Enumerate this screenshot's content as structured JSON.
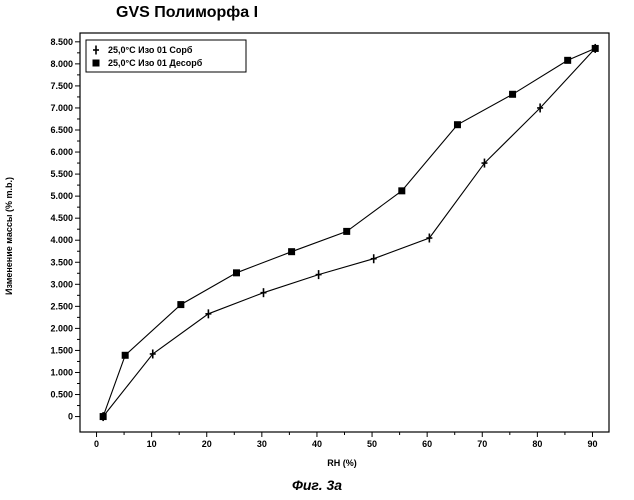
{
  "chart_data": {
    "type": "line",
    "title": "GVS Полиморфа I",
    "xlabel": "RH (%)",
    "ylabel": "Изменение массы (% m.b.)",
    "xlim": [
      -3,
      93
    ],
    "ylim": [
      -0.35,
      8.7
    ],
    "x_ticks": [
      0,
      10,
      20,
      30,
      40,
      50,
      60,
      70,
      80,
      90
    ],
    "x_tick_labels": [
      "0",
      "10",
      "20",
      "30",
      "40",
      "50",
      "60",
      "70",
      "80",
      "90"
    ],
    "y_ticks": [
      0,
      0.5,
      1,
      1.5,
      2,
      2.5,
      3,
      3.5,
      4,
      4.5,
      5,
      5.5,
      6,
      6.5,
      7,
      7.5,
      8,
      8.5
    ],
    "y_tick_labels": [
      "0",
      "0.500",
      "1.000",
      "1.500",
      "2.000",
      "2.500",
      "3.000",
      "3.500",
      "4.000",
      "4.500",
      "5.000",
      "5.500",
      "6.000",
      "6.500",
      "7.000",
      "7.500",
      "8.000",
      "8.500"
    ],
    "grid": false,
    "legend_position": "top-left",
    "series": [
      {
        "name": "25,0°C Изо 01 Сорб",
        "marker": "plus",
        "x": [
          1.2,
          10.2,
          20.3,
          30.3,
          40.3,
          50.3,
          60.4,
          70.4,
          80.5,
          90.5
        ],
        "y": [
          0.0,
          1.42,
          2.33,
          2.81,
          3.22,
          3.58,
          4.05,
          5.75,
          7.0,
          8.35
        ]
      },
      {
        "name": "25,0°C Изо 01 Десорб",
        "marker": "square",
        "x": [
          90.5,
          85.5,
          75.5,
          65.5,
          55.4,
          45.4,
          35.4,
          25.4,
          15.3,
          5.2,
          1.2
        ],
        "y": [
          8.35,
          8.08,
          7.31,
          6.62,
          5.12,
          4.2,
          3.74,
          3.26,
          2.54,
          1.39,
          0.0
        ]
      }
    ]
  },
  "caption": "Фиг. 3а"
}
